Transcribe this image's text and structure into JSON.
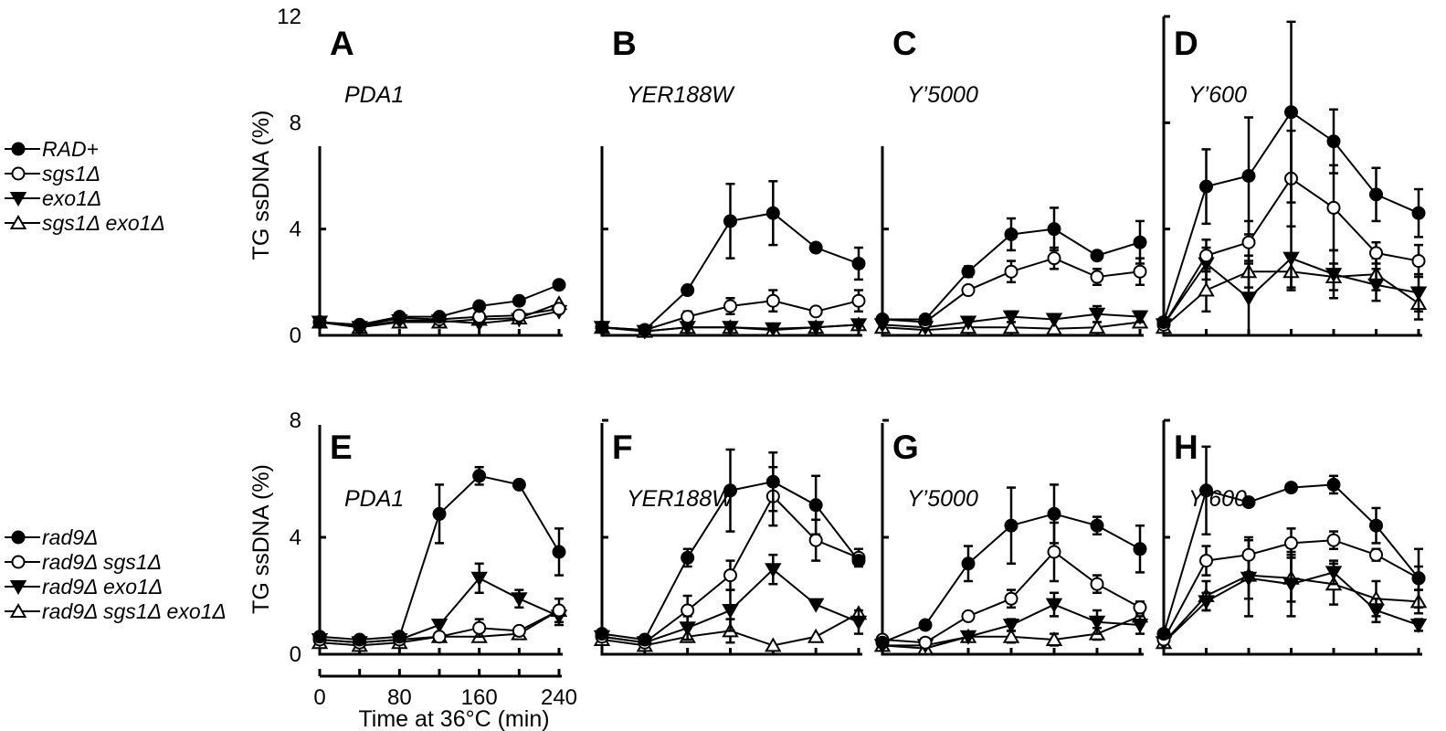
{
  "legends": [
    {
      "entries": [
        {
          "label": "RAD+",
          "marker": "filled-circle"
        },
        {
          "label": "sgs1Δ",
          "marker": "open-circle"
        },
        {
          "label": "exo1Δ",
          "marker": "filled-triangle-down"
        },
        {
          "label": "sgs1Δ exo1Δ",
          "marker": "open-triangle-up"
        }
      ]
    },
    {
      "entries": [
        {
          "label": "rad9Δ",
          "marker": "filled-circle"
        },
        {
          "label": "rad9Δ sgs1Δ",
          "marker": "open-circle"
        },
        {
          "label": "rad9Δ exo1Δ",
          "marker": "filled-triangle-down"
        },
        {
          "label": "rad9Δ sgs1Δ exo1Δ",
          "marker": "open-triangle-up"
        }
      ]
    }
  ],
  "axes": {
    "top_ylabel": "TG ssDNA (%)",
    "bottom_ylabel": "TG ssDNA (%)",
    "xlabel": "Time at 36°C (min)",
    "x_ticks": [
      "0",
      "80",
      "160",
      "240"
    ],
    "top_y_ticks": [
      "0",
      "4",
      "8",
      "12"
    ],
    "bottom_y_ticks": [
      "0",
      "4",
      "8"
    ]
  },
  "chart_data": [
    {
      "type": "line",
      "panel": "A",
      "title": "PDA1",
      "x": [
        0,
        40,
        80,
        120,
        160,
        200,
        240
      ],
      "ylim": [
        0,
        12
      ],
      "series": [
        {
          "marker": "filled-circle",
          "values": [
            0.5,
            0.4,
            0.7,
            0.7,
            1.1,
            1.3,
            1.9
          ],
          "errors": [
            0,
            0,
            0,
            0,
            0,
            0,
            0
          ]
        },
        {
          "marker": "open-circle",
          "values": [
            0.5,
            0.35,
            0.65,
            0.6,
            0.7,
            0.75,
            1.0
          ],
          "errors": [
            0,
            0,
            0,
            0,
            0,
            0,
            0
          ]
        },
        {
          "marker": "filled-triangle-down",
          "values": [
            0.5,
            0.3,
            0.55,
            0.55,
            0.45,
            0.6,
            0.9
          ],
          "errors": [
            0,
            0,
            0,
            0,
            0,
            0,
            0
          ]
        },
        {
          "marker": "open-triangle-up",
          "values": [
            0.5,
            0.3,
            0.5,
            0.5,
            0.6,
            0.65,
            1.2
          ],
          "errors": [
            0,
            0,
            0,
            0,
            0,
            0,
            0
          ]
        }
      ]
    },
    {
      "type": "line",
      "panel": "B",
      "title": "YER188W",
      "x": [
        0,
        40,
        80,
        120,
        160,
        200,
        240
      ],
      "ylim": [
        0,
        12
      ],
      "series": [
        {
          "marker": "filled-circle",
          "values": [
            0.3,
            0.2,
            1.7,
            4.3,
            4.6,
            3.3,
            2.7
          ],
          "errors": [
            0,
            0,
            0,
            1.4,
            1.2,
            0,
            0.6
          ]
        },
        {
          "marker": "open-circle",
          "values": [
            0.3,
            0.2,
            0.7,
            1.1,
            1.3,
            0.9,
            1.3
          ],
          "errors": [
            0,
            0,
            0.2,
            0.3,
            0.4,
            0,
            0.4
          ]
        },
        {
          "marker": "filled-triangle-down",
          "values": [
            0.3,
            0.15,
            0.3,
            0.3,
            0.25,
            0.3,
            0.4
          ],
          "errors": [
            0,
            0,
            0,
            0,
            0,
            0,
            0
          ]
        },
        {
          "marker": "open-triangle-up",
          "values": [
            0.3,
            0.15,
            0.3,
            0.3,
            0.2,
            0.3,
            0.4
          ],
          "errors": [
            0,
            0,
            0,
            0,
            0,
            0,
            0
          ]
        }
      ]
    },
    {
      "type": "line",
      "panel": "C",
      "title": "Y’5000",
      "x": [
        0,
        40,
        80,
        120,
        160,
        200,
        240
      ],
      "ylim": [
        0,
        12
      ],
      "series": [
        {
          "marker": "filled-circle",
          "values": [
            0.6,
            0.6,
            2.4,
            3.8,
            4.0,
            3.0,
            3.5
          ],
          "errors": [
            0,
            0,
            0.2,
            0.6,
            0.8,
            0,
            0.8
          ]
        },
        {
          "marker": "open-circle",
          "values": [
            0.6,
            0.5,
            1.7,
            2.4,
            2.9,
            2.2,
            2.4
          ],
          "errors": [
            0,
            0,
            0,
            0.4,
            0.4,
            0.3,
            0.5
          ]
        },
        {
          "marker": "filled-triangle-down",
          "values": [
            0.4,
            0.3,
            0.5,
            0.7,
            0.6,
            0.8,
            0.7
          ],
          "errors": [
            0,
            0,
            0,
            0.2,
            0,
            0.3,
            0.2
          ]
        },
        {
          "marker": "open-triangle-up",
          "values": [
            0.3,
            0.2,
            0.3,
            0.3,
            0.25,
            0.3,
            0.5
          ],
          "errors": [
            0,
            0,
            0,
            0,
            0,
            0,
            0
          ]
        }
      ]
    },
    {
      "type": "line",
      "panel": "D",
      "title": "Y’600",
      "x": [
        0,
        40,
        80,
        120,
        160,
        200,
        240
      ],
      "ylim": [
        0,
        12
      ],
      "series": [
        {
          "marker": "filled-circle",
          "values": [
            0.5,
            5.6,
            6.0,
            8.4,
            7.3,
            5.3,
            4.6
          ],
          "errors": [
            0,
            1.4,
            2.2,
            3.4,
            1.2,
            1.0,
            0.9
          ]
        },
        {
          "marker": "open-circle",
          "values": [
            0.4,
            3.0,
            3.5,
            5.9,
            4.8,
            3.1,
            2.8
          ],
          "errors": [
            0,
            0.6,
            0.8,
            1.8,
            1.6,
            0.4,
            0.6
          ]
        },
        {
          "marker": "filled-triangle-down",
          "values": [
            0.4,
            2.7,
            1.4,
            2.9,
            2.3,
            1.9,
            1.6
          ],
          "errors": [
            0,
            0.6,
            1.4,
            1.2,
            0.9,
            0.6,
            0.7
          ]
        },
        {
          "marker": "open-triangle-up",
          "values": [
            0.3,
            1.7,
            2.4,
            2.4,
            2.2,
            2.3,
            1.2
          ],
          "errors": [
            0,
            0.8,
            0.6,
            0.6,
            0.5,
            0.6,
            0.6
          ]
        }
      ]
    },
    {
      "type": "line",
      "panel": "E",
      "title": "PDA1",
      "x": [
        0,
        40,
        80,
        120,
        160,
        200,
        240
      ],
      "ylim": [
        0,
        8
      ],
      "series": [
        {
          "marker": "filled-circle",
          "values": [
            0.6,
            0.5,
            0.6,
            4.8,
            6.1,
            5.8,
            3.5
          ],
          "errors": [
            0,
            0,
            0,
            1.0,
            0.3,
            0,
            0.8
          ]
        },
        {
          "marker": "open-circle",
          "values": [
            0.5,
            0.4,
            0.5,
            0.6,
            0.9,
            0.8,
            1.5
          ],
          "errors": [
            0,
            0,
            0,
            0,
            0.3,
            0,
            0.4
          ]
        },
        {
          "marker": "filled-triangle-down",
          "values": [
            0.5,
            0.4,
            0.5,
            1.0,
            2.6,
            1.9,
            1.3
          ],
          "errors": [
            0,
            0,
            0,
            0,
            0.5,
            0.3,
            0.3
          ]
        },
        {
          "marker": "open-triangle-up",
          "values": [
            0.4,
            0.3,
            0.4,
            0.6,
            0.6,
            0.7,
            1.5
          ],
          "errors": [
            0,
            0,
            0,
            0,
            0,
            0,
            0
          ]
        }
      ]
    },
    {
      "type": "line",
      "panel": "F",
      "title": "YER188W",
      "x": [
        0,
        40,
        80,
        120,
        160,
        200,
        240
      ],
      "ylim": [
        0,
        8
      ],
      "series": [
        {
          "marker": "filled-circle",
          "values": [
            0.7,
            0.5,
            3.3,
            5.6,
            5.9,
            5.1,
            3.2
          ],
          "errors": [
            0,
            0,
            0.3,
            1.4,
            1.0,
            1.0,
            0
          ]
        },
        {
          "marker": "open-circle",
          "values": [
            0.6,
            0.4,
            1.5,
            2.7,
            5.4,
            3.9,
            3.3
          ],
          "errors": [
            0,
            0,
            0.5,
            0.5,
            1.0,
            0.7,
            0.3
          ]
        },
        {
          "marker": "filled-triangle-down",
          "values": [
            0.6,
            0.4,
            0.9,
            1.5,
            2.9,
            1.7,
            1.1
          ],
          "errors": [
            0,
            0,
            0.4,
            0.7,
            0.5,
            0,
            0.4
          ]
        },
        {
          "marker": "open-triangle-up",
          "values": [
            0.5,
            0.3,
            0.6,
            0.8,
            0.3,
            0.6,
            1.4
          ],
          "errors": [
            0,
            0,
            0,
            0.4,
            0,
            0,
            0
          ]
        }
      ]
    },
    {
      "type": "line",
      "panel": "G",
      "title": "Y’5000",
      "x": [
        0,
        40,
        80,
        120,
        160,
        200,
        240
      ],
      "ylim": [
        0,
        8
      ],
      "series": [
        {
          "marker": "filled-circle",
          "values": [
            0.4,
            1.0,
            3.1,
            4.4,
            4.8,
            4.4,
            3.6
          ],
          "errors": [
            0,
            0,
            0.6,
            1.3,
            1.0,
            0.3,
            0.8
          ]
        },
        {
          "marker": "open-circle",
          "values": [
            0.5,
            0.4,
            1.3,
            1.9,
            3.5,
            2.4,
            1.6
          ],
          "errors": [
            0,
            0,
            0,
            0.3,
            1.0,
            0.3,
            0.2
          ]
        },
        {
          "marker": "filled-triangle-down",
          "values": [
            0.3,
            0.3,
            0.6,
            1.0,
            1.7,
            1.1,
            1.0
          ],
          "errors": [
            0,
            0,
            0,
            0.2,
            0.4,
            0.4,
            0.3
          ]
        },
        {
          "marker": "open-triangle-up",
          "values": [
            0.3,
            0.2,
            0.6,
            0.6,
            0.5,
            0.7,
            1.3
          ],
          "errors": [
            0,
            0,
            0,
            0.2,
            0.2,
            0.2,
            0.3
          ]
        }
      ]
    },
    {
      "type": "line",
      "panel": "H",
      "title": "Y’600",
      "x": [
        0,
        40,
        80,
        120,
        160,
        200,
        240
      ],
      "ylim": [
        0,
        8
      ],
      "series": [
        {
          "marker": "filled-circle",
          "values": [
            0.7,
            5.6,
            5.2,
            5.7,
            5.8,
            4.4,
            2.6
          ],
          "errors": [
            0,
            1.5,
            0,
            0,
            0.3,
            0.6,
            1.0
          ]
        },
        {
          "marker": "open-circle",
          "values": [
            0.5,
            3.2,
            3.4,
            3.8,
            3.9,
            3.4,
            2.6
          ],
          "errors": [
            0,
            0.5,
            0.6,
            0.5,
            0.3,
            0.2,
            0.4
          ]
        },
        {
          "marker": "filled-triangle-down",
          "values": [
            0.4,
            1.8,
            2.6,
            2.4,
            2.8,
            1.5,
            1.0
          ],
          "errors": [
            0,
            0.3,
            1.3,
            1.1,
            0.4,
            0.4,
            0.2
          ]
        },
        {
          "marker": "open-triangle-up",
          "values": [
            0.4,
            2.0,
            2.7,
            2.6,
            2.4,
            1.9,
            1.8
          ],
          "errors": [
            0,
            0.5,
            0.8,
            0.8,
            0.7,
            0.6,
            0.4
          ]
        }
      ]
    }
  ]
}
